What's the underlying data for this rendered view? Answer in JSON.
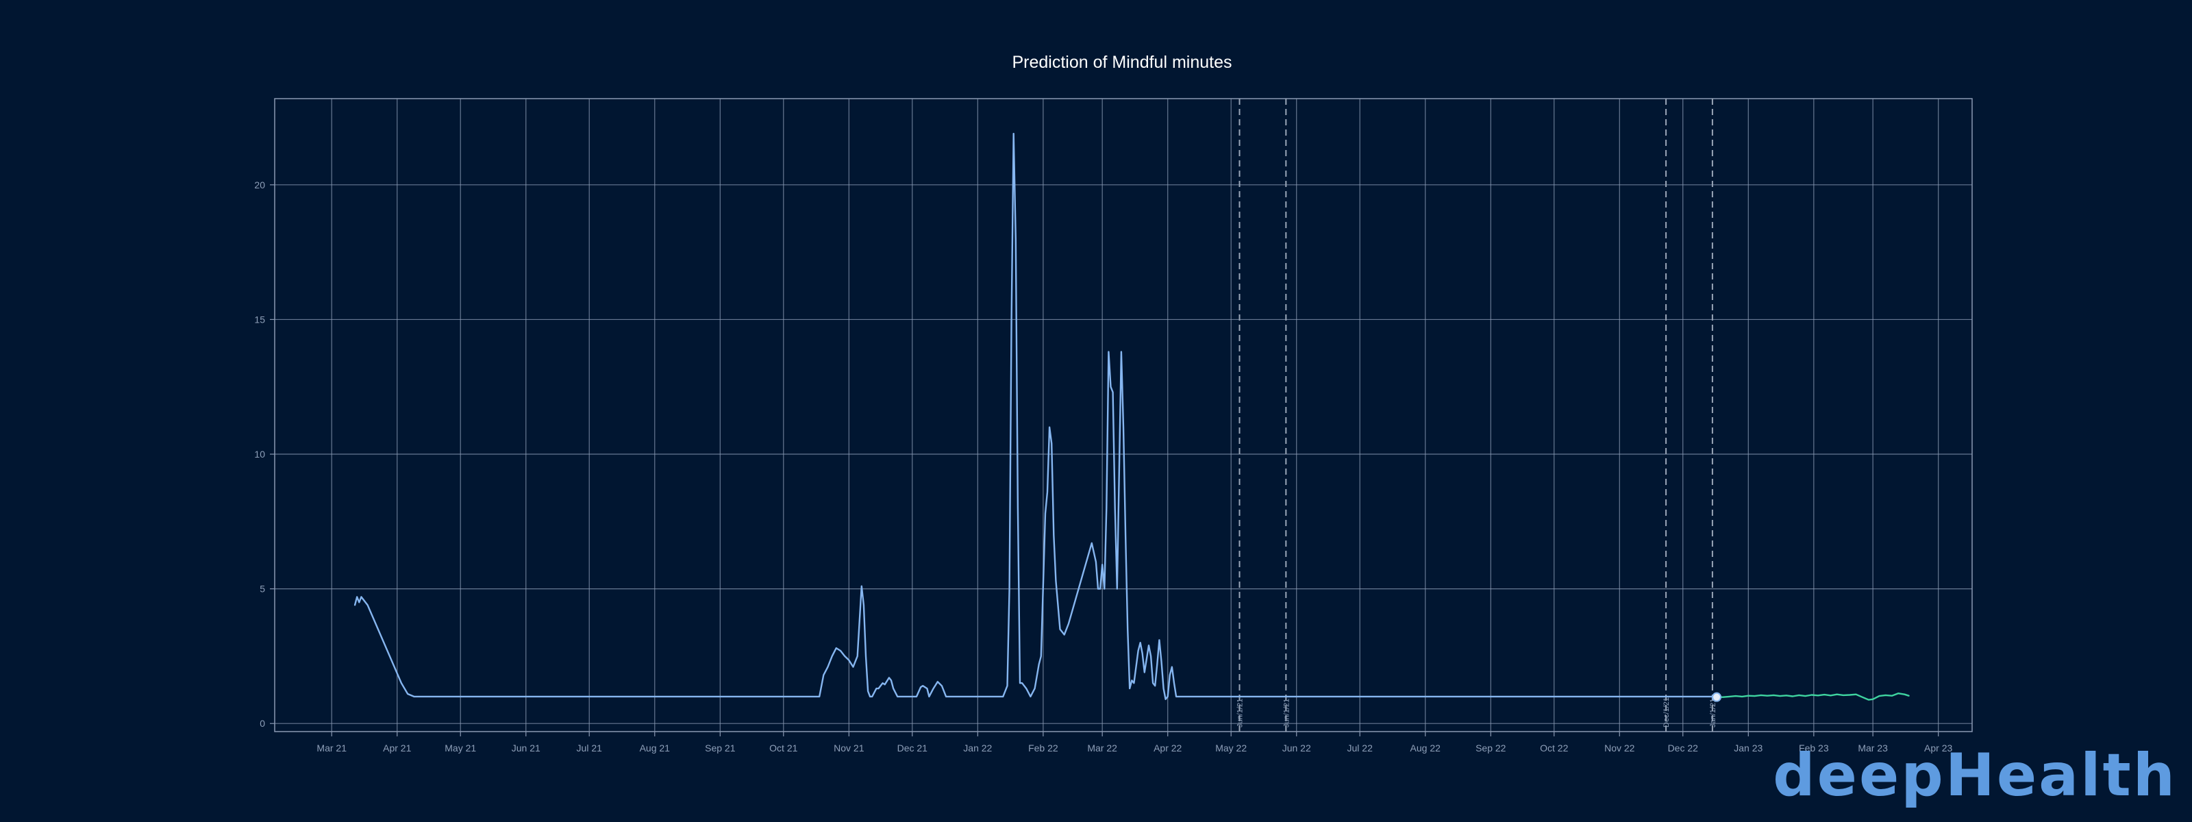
{
  "colors": {
    "background": "#011631",
    "grid": "#8a99b3",
    "actual_line": "#86b6f0",
    "prediction_line": "#3fd4a0",
    "dashed_lines": "#9aa6b8",
    "logo": "#5e9be0"
  },
  "brand": {
    "logo_text": "deepHealth"
  },
  "chart_data": {
    "type": "line",
    "title": "Prediction of Mindful minutes",
    "xlabel": "",
    "ylabel": "",
    "x_range": [
      "2021-02-02",
      "2023-04-17"
    ],
    "ylim": [
      -0.3,
      23.2
    ],
    "grid": true,
    "x_ticks": [
      {
        "date": "2021-03-01",
        "label": "Mar 21"
      },
      {
        "date": "2021-04-01",
        "label": "Apr 21"
      },
      {
        "date": "2021-05-01",
        "label": "May 21"
      },
      {
        "date": "2021-06-01",
        "label": "Jun 21"
      },
      {
        "date": "2021-07-01",
        "label": "Jul 21"
      },
      {
        "date": "2021-08-01",
        "label": "Aug 21"
      },
      {
        "date": "2021-09-01",
        "label": "Sep 21"
      },
      {
        "date": "2021-10-01",
        "label": "Oct 21"
      },
      {
        "date": "2021-11-01",
        "label": "Nov 21"
      },
      {
        "date": "2021-12-01",
        "label": "Dec 21"
      },
      {
        "date": "2022-01-01",
        "label": "Jan 22"
      },
      {
        "date": "2022-02-01",
        "label": "Feb 22"
      },
      {
        "date": "2022-03-01",
        "label": "Mar 22"
      },
      {
        "date": "2022-04-01",
        "label": "Apr 22"
      },
      {
        "date": "2022-05-01",
        "label": "May 22"
      },
      {
        "date": "2022-06-01",
        "label": "Jun 22"
      },
      {
        "date": "2022-07-01",
        "label": "Jul 22"
      },
      {
        "date": "2022-08-01",
        "label": "Aug 22"
      },
      {
        "date": "2022-09-01",
        "label": "Sep 22"
      },
      {
        "date": "2022-10-01",
        "label": "Oct 22"
      },
      {
        "date": "2022-11-01",
        "label": "Nov 22"
      },
      {
        "date": "2022-12-01",
        "label": "Dec 22"
      },
      {
        "date": "2023-01-01",
        "label": "Jan 23"
      },
      {
        "date": "2023-02-01",
        "label": "Feb 23"
      },
      {
        "date": "2023-03-01",
        "label": "Mar 23"
      },
      {
        "date": "2023-04-01",
        "label": "Apr 23"
      }
    ],
    "y_ticks": [
      0,
      5,
      10,
      15,
      20
    ],
    "vertical_markers": [
      {
        "date": "2022-05-05",
        "label": "Jun/1/21"
      },
      {
        "date": "2022-05-27",
        "label": "Jun/1/21"
      },
      {
        "date": "2022-11-23",
        "label": "Dec/1/21"
      },
      {
        "date": "2022-12-15",
        "label": "Jan/1/21"
      }
    ],
    "series": [
      {
        "role": "actual",
        "points": [
          [
            "2021-03-12",
            4.4
          ],
          [
            "2021-03-13",
            4.7
          ],
          [
            "2021-03-14",
            4.5
          ],
          [
            "2021-03-15",
            4.7
          ],
          [
            "2021-03-18",
            4.4
          ],
          [
            "2021-04-03",
            1.5
          ],
          [
            "2021-04-06",
            1.1
          ],
          [
            "2021-04-09",
            1.0
          ],
          [
            "2021-10-18",
            1.0
          ],
          [
            "2021-10-20",
            1.8
          ],
          [
            "2021-10-22",
            2.1
          ],
          [
            "2021-10-24",
            2.5
          ],
          [
            "2021-10-26",
            2.8
          ],
          [
            "2021-10-28",
            2.7
          ],
          [
            "2021-10-30",
            2.5
          ],
          [
            "2021-11-01",
            2.35
          ],
          [
            "2021-11-03",
            2.1
          ],
          [
            "2021-11-05",
            2.5
          ],
          [
            "2021-11-07",
            5.1
          ],
          [
            "2021-11-08",
            4.4
          ],
          [
            "2021-11-09",
            2.5
          ],
          [
            "2021-11-10",
            1.2
          ],
          [
            "2021-11-11",
            1.0
          ],
          [
            "2021-11-12",
            1.0
          ],
          [
            "2021-11-14",
            1.3
          ],
          [
            "2021-11-15",
            1.3
          ],
          [
            "2021-11-17",
            1.5
          ],
          [
            "2021-11-18",
            1.45
          ],
          [
            "2021-11-20",
            1.7
          ],
          [
            "2021-11-21",
            1.6
          ],
          [
            "2021-11-22",
            1.3
          ],
          [
            "2021-11-24",
            1.0
          ],
          [
            "2021-12-03",
            1.0
          ],
          [
            "2021-12-05",
            1.35
          ],
          [
            "2021-12-06",
            1.4
          ],
          [
            "2021-12-08",
            1.3
          ],
          [
            "2021-12-09",
            1.0
          ],
          [
            "2021-12-11",
            1.3
          ],
          [
            "2021-12-13",
            1.55
          ],
          [
            "2021-12-15",
            1.4
          ],
          [
            "2021-12-17",
            1.0
          ],
          [
            "2022-01-13",
            1.0
          ],
          [
            "2022-01-15",
            1.4
          ],
          [
            "2022-01-16",
            5.0
          ],
          [
            "2022-01-17",
            15.0
          ],
          [
            "2022-01-18",
            21.9
          ],
          [
            "2022-01-19",
            18.0
          ],
          [
            "2022-01-20",
            8.0
          ],
          [
            "2022-01-21",
            1.5
          ],
          [
            "2022-01-22",
            1.5
          ],
          [
            "2022-01-24",
            1.3
          ],
          [
            "2022-01-26",
            1.0
          ],
          [
            "2022-01-28",
            1.3
          ],
          [
            "2022-01-30",
            2.2
          ],
          [
            "2022-01-31",
            2.5
          ],
          [
            "2022-02-02",
            7.8
          ],
          [
            "2022-02-03",
            8.6
          ],
          [
            "2022-02-04",
            11.0
          ],
          [
            "2022-02-05",
            10.4
          ],
          [
            "2022-02-06",
            7.0
          ],
          [
            "2022-02-07",
            5.3
          ],
          [
            "2022-02-09",
            3.5
          ],
          [
            "2022-02-10",
            3.4
          ],
          [
            "2022-02-11",
            3.3
          ],
          [
            "2022-02-13",
            3.7
          ],
          [
            "2022-02-24",
            6.7
          ],
          [
            "2022-02-26",
            6.0
          ],
          [
            "2022-02-27",
            5.0
          ],
          [
            "2022-02-28",
            5.0
          ],
          [
            "2022-03-01",
            5.9
          ],
          [
            "2022-03-02",
            5.0
          ],
          [
            "2022-03-03",
            8.0
          ],
          [
            "2022-03-04",
            13.8
          ],
          [
            "2022-03-05",
            12.5
          ],
          [
            "2022-03-06",
            12.3
          ],
          [
            "2022-03-07",
            8.0
          ],
          [
            "2022-03-08",
            5.0
          ],
          [
            "2022-03-10",
            13.8
          ],
          [
            "2022-03-11",
            11.0
          ],
          [
            "2022-03-12",
            7.0
          ],
          [
            "2022-03-13",
            3.5
          ],
          [
            "2022-03-14",
            1.3
          ],
          [
            "2022-03-15",
            1.6
          ],
          [
            "2022-03-16",
            1.5
          ],
          [
            "2022-03-18",
            2.7
          ],
          [
            "2022-03-19",
            3.0
          ],
          [
            "2022-03-20",
            2.6
          ],
          [
            "2022-03-21",
            1.9
          ],
          [
            "2022-03-22",
            2.4
          ],
          [
            "2022-03-23",
            2.9
          ],
          [
            "2022-03-24",
            2.5
          ],
          [
            "2022-03-25",
            1.5
          ],
          [
            "2022-03-26",
            1.4
          ],
          [
            "2022-03-27",
            2.2
          ],
          [
            "2022-03-28",
            3.1
          ],
          [
            "2022-03-29",
            2.3
          ],
          [
            "2022-03-30",
            1.3
          ],
          [
            "2022-03-31",
            0.9
          ],
          [
            "2022-04-01",
            1.0
          ],
          [
            "2022-04-02",
            1.8
          ],
          [
            "2022-04-03",
            2.1
          ],
          [
            "2022-04-04",
            1.5
          ],
          [
            "2022-04-05",
            1.0
          ],
          [
            "2022-12-17",
            1.0
          ]
        ]
      },
      {
        "role": "prediction",
        "points": [
          [
            "2022-12-17",
            0.98
          ],
          [
            "2022-12-20",
            0.98
          ],
          [
            "2022-12-23",
            1.0
          ],
          [
            "2022-12-26",
            1.02
          ],
          [
            "2022-12-29",
            1.0
          ],
          [
            "2023-01-01",
            1.03
          ],
          [
            "2023-01-04",
            1.02
          ],
          [
            "2023-01-07",
            1.05
          ],
          [
            "2023-01-10",
            1.03
          ],
          [
            "2023-01-13",
            1.05
          ],
          [
            "2023-01-16",
            1.02
          ],
          [
            "2023-01-19",
            1.04
          ],
          [
            "2023-01-22",
            1.01
          ],
          [
            "2023-01-25",
            1.05
          ],
          [
            "2023-01-28",
            1.02
          ],
          [
            "2023-01-31",
            1.06
          ],
          [
            "2023-02-03",
            1.04
          ],
          [
            "2023-02-06",
            1.07
          ],
          [
            "2023-02-09",
            1.04
          ],
          [
            "2023-02-12",
            1.08
          ],
          [
            "2023-02-15",
            1.05
          ],
          [
            "2023-02-18",
            1.06
          ],
          [
            "2023-02-21",
            1.08
          ],
          [
            "2023-02-24",
            0.98
          ],
          [
            "2023-02-27",
            0.88
          ],
          [
            "2023-03-01",
            0.9
          ],
          [
            "2023-03-04",
            1.02
          ],
          [
            "2023-03-07",
            1.05
          ],
          [
            "2023-03-10",
            1.03
          ],
          [
            "2023-03-13",
            1.12
          ],
          [
            "2023-03-16",
            1.08
          ],
          [
            "2023-03-18",
            1.03
          ]
        ]
      }
    ]
  }
}
